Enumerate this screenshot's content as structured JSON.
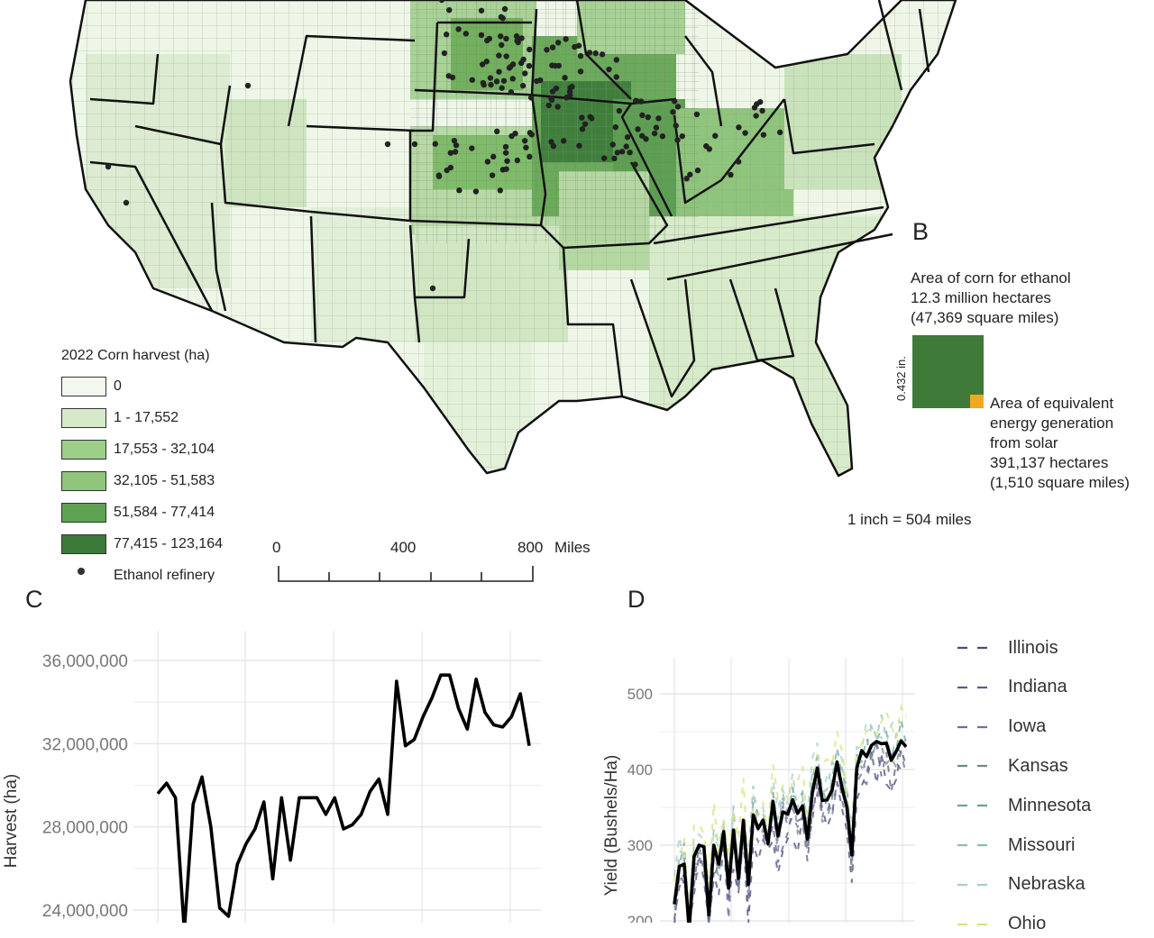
{
  "panel_a": {
    "legend_title": "2022 Corn harvest (ha)",
    "legend": [
      {
        "label": "0",
        "color": "#f3f8ee"
      },
      {
        "label": "1 - 17,552",
        "color": "#d6eac9"
      },
      {
        "label": "17,553 - 32,104",
        "color": "#9ccf87"
      },
      {
        "label": "32,105 - 51,583",
        "color": "#8fc67b"
      },
      {
        "label": "51,584 - 77,414",
        "color": "#5ea352"
      },
      {
        "label": "77,415 - 123,164",
        "color": "#3b7a38"
      }
    ],
    "refinery_label": "Ethanol refinery",
    "scale_bar": {
      "ticks": [
        "0",
        "400",
        "800"
      ],
      "unit": "Miles"
    }
  },
  "panel_b": {
    "letter": "B",
    "corn_text": [
      "Area of corn for ethanol",
      "12.3 million hectares",
      "(47,369 square miles)"
    ],
    "side_label": "0.432 in.",
    "solar_text": [
      "Area of equivalent",
      "energy generation",
      "from solar",
      "391,137 hectares",
      "(1,510 square miles)"
    ],
    "scale_text": "1 inch = 504 miles",
    "corn_color": "#3f7a39",
    "solar_color": "#f0a821"
  },
  "chart_data": [
    {
      "panel": "C",
      "type": "line",
      "ylabel": "Harvest (ha)",
      "ylim": [
        22000000,
        37000000
      ],
      "yticks": [
        "24,000,000",
        "28,000,000",
        "32,000,000",
        "36,000,000"
      ],
      "series": [
        {
          "values": [
            29600000,
            30100000,
            29400000,
            23000000,
            29100000,
            30400000,
            28000000,
            24100000,
            23700000,
            26200000,
            27200000,
            27900000,
            29200000,
            25500000,
            29400000,
            26400000,
            29400000,
            29400000,
            29400000,
            28600000,
            29400000,
            27900000,
            28100000,
            28600000,
            29700000,
            30300000,
            28600000,
            35000000,
            31900000,
            32200000,
            33300000,
            34200000,
            35300000,
            35300000,
            33700000,
            32700000,
            35100000,
            33500000,
            32900000,
            32800000,
            33300000,
            34400000,
            31900000
          ]
        }
      ]
    },
    {
      "panel": "D",
      "type": "line",
      "ylabel": "Yield (Bushels/Ha)",
      "ylim": [
        195,
        535
      ],
      "yticks": [
        "200",
        "300",
        "400",
        "500"
      ],
      "legend": [
        "Illinois",
        "Indiana",
        "Iowa",
        "Kansas",
        "Minnesota",
        "Missouri",
        "Nebraska",
        "Ohio"
      ],
      "series": [
        {
          "values": [
            222,
            272,
            275,
            188,
            285,
            300,
            298,
            208,
            300,
            275,
            318,
            243,
            320,
            256,
            333,
            248,
            340,
            322,
            333,
            302,
            358,
            312,
            344,
            341,
            360,
            342,
            352,
            308,
            370,
            402,
            359,
            360,
            373,
            410,
            376,
            350,
            287,
            402,
            425,
            417,
            432,
            437,
            434,
            435,
            412,
            424,
            438,
            430
          ]
        }
      ]
    }
  ],
  "panel_c_letter": "C",
  "panel_d_letter": "D",
  "colors": {
    "line": "#000000",
    "grid": "#e6e6e6",
    "border": "#111111"
  }
}
